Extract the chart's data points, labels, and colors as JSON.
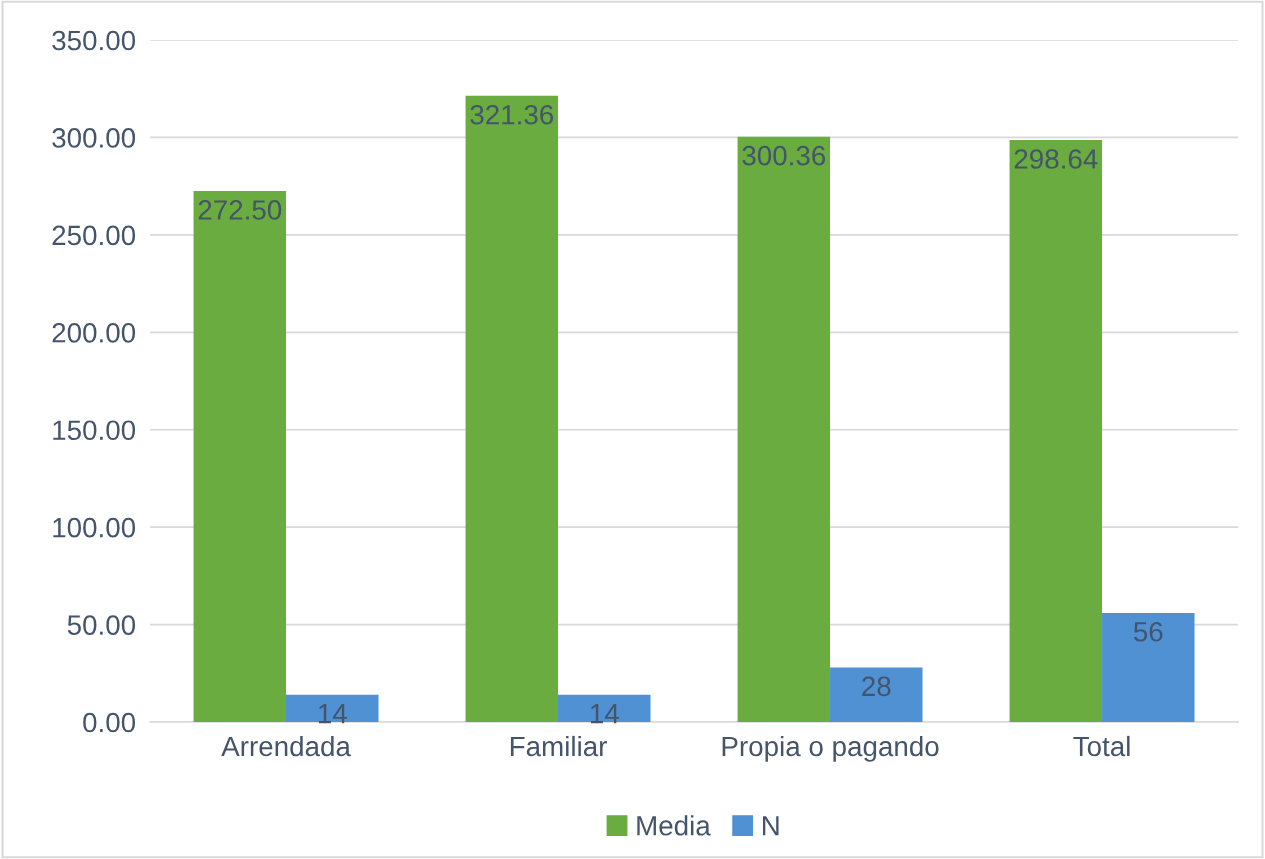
{
  "chart_data": {
    "type": "bar",
    "categories": [
      "Arrendada",
      "Familiar",
      "Propia o pagando",
      "Total"
    ],
    "series": [
      {
        "name": "Media",
        "color": "#6aac3f",
        "values": [
          272.5,
          321.36,
          300.36,
          298.64
        ],
        "value_labels": [
          "272.50",
          "321.36",
          "300.36",
          "298.64"
        ]
      },
      {
        "name": "N",
        "color": "#4f91d3",
        "values": [
          14,
          14,
          28,
          56
        ],
        "value_labels": [
          "14",
          "14",
          "28",
          "56"
        ]
      }
    ],
    "ylim": [
      0,
      350
    ],
    "yticks": [
      {
        "value": 0,
        "label": "0.00"
      },
      {
        "value": 50,
        "label": "50.00"
      },
      {
        "value": 100,
        "label": "100.00"
      },
      {
        "value": 150,
        "label": "150.00"
      },
      {
        "value": 200,
        "label": "200.00"
      },
      {
        "value": 250,
        "label": "250.00"
      },
      {
        "value": 300,
        "label": "300.00"
      },
      {
        "value": 350,
        "label": "350.00"
      }
    ],
    "grid": "y",
    "legend": "bottom"
  }
}
